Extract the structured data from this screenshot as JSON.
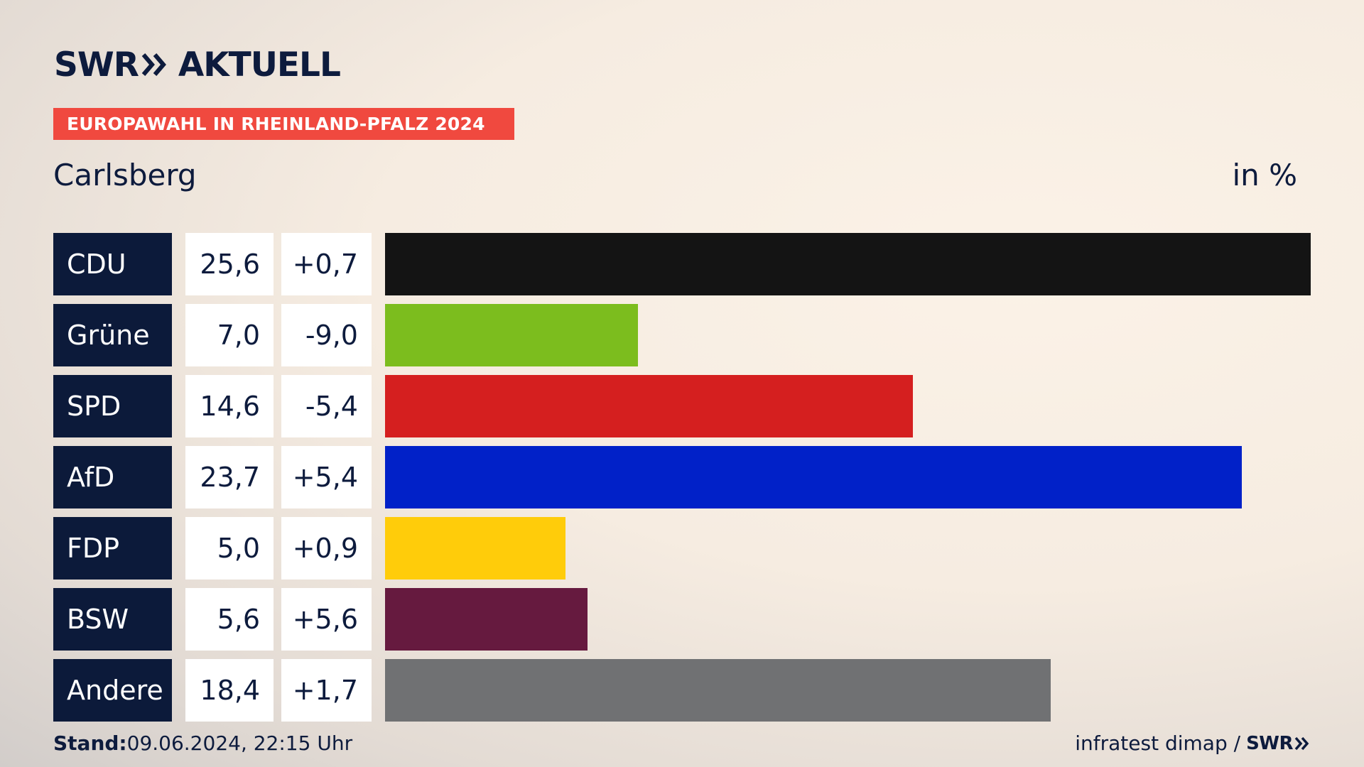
{
  "brand": {
    "logo_left": "SWR",
    "logo_right": "AKTUELL",
    "chevron_icon": "double-chevron-right-icon",
    "color": "#0d1b3d"
  },
  "kicker": "EUROPAWAHL IN RHEINLAND-PFALZ 2024",
  "kicker_color": "#f0493f",
  "place": "Carlsberg",
  "unit": "in %",
  "footer": {
    "stand_label": "Stand:",
    "stand_value": "09.06.2024, 22:15 Uhr",
    "source": "infratest dimap /",
    "source_logo": "SWR"
  },
  "chart_data": {
    "type": "bar",
    "orientation": "horizontal",
    "categories": [
      "CDU",
      "Grüne",
      "SPD",
      "AfD",
      "FDP",
      "BSW",
      "Andere"
    ],
    "values": [
      25.6,
      7.0,
      14.6,
      23.7,
      5.0,
      5.6,
      18.4
    ],
    "value_labels": [
      "25,6",
      "7,0",
      "14,6",
      "23,7",
      "5,0",
      "5,6",
      "18,4"
    ],
    "change_labels": [
      "+0,7",
      "-9,0",
      "-5,4",
      "+5,4",
      "+0,9",
      "+5,6",
      "+1,7"
    ],
    "colors": [
      "#141414",
      "#7cbd1e",
      "#d51f1f",
      "#0121c8",
      "#ffcc0a",
      "#661a3f",
      "#707173"
    ],
    "grid": false,
    "legend": "none"
  }
}
